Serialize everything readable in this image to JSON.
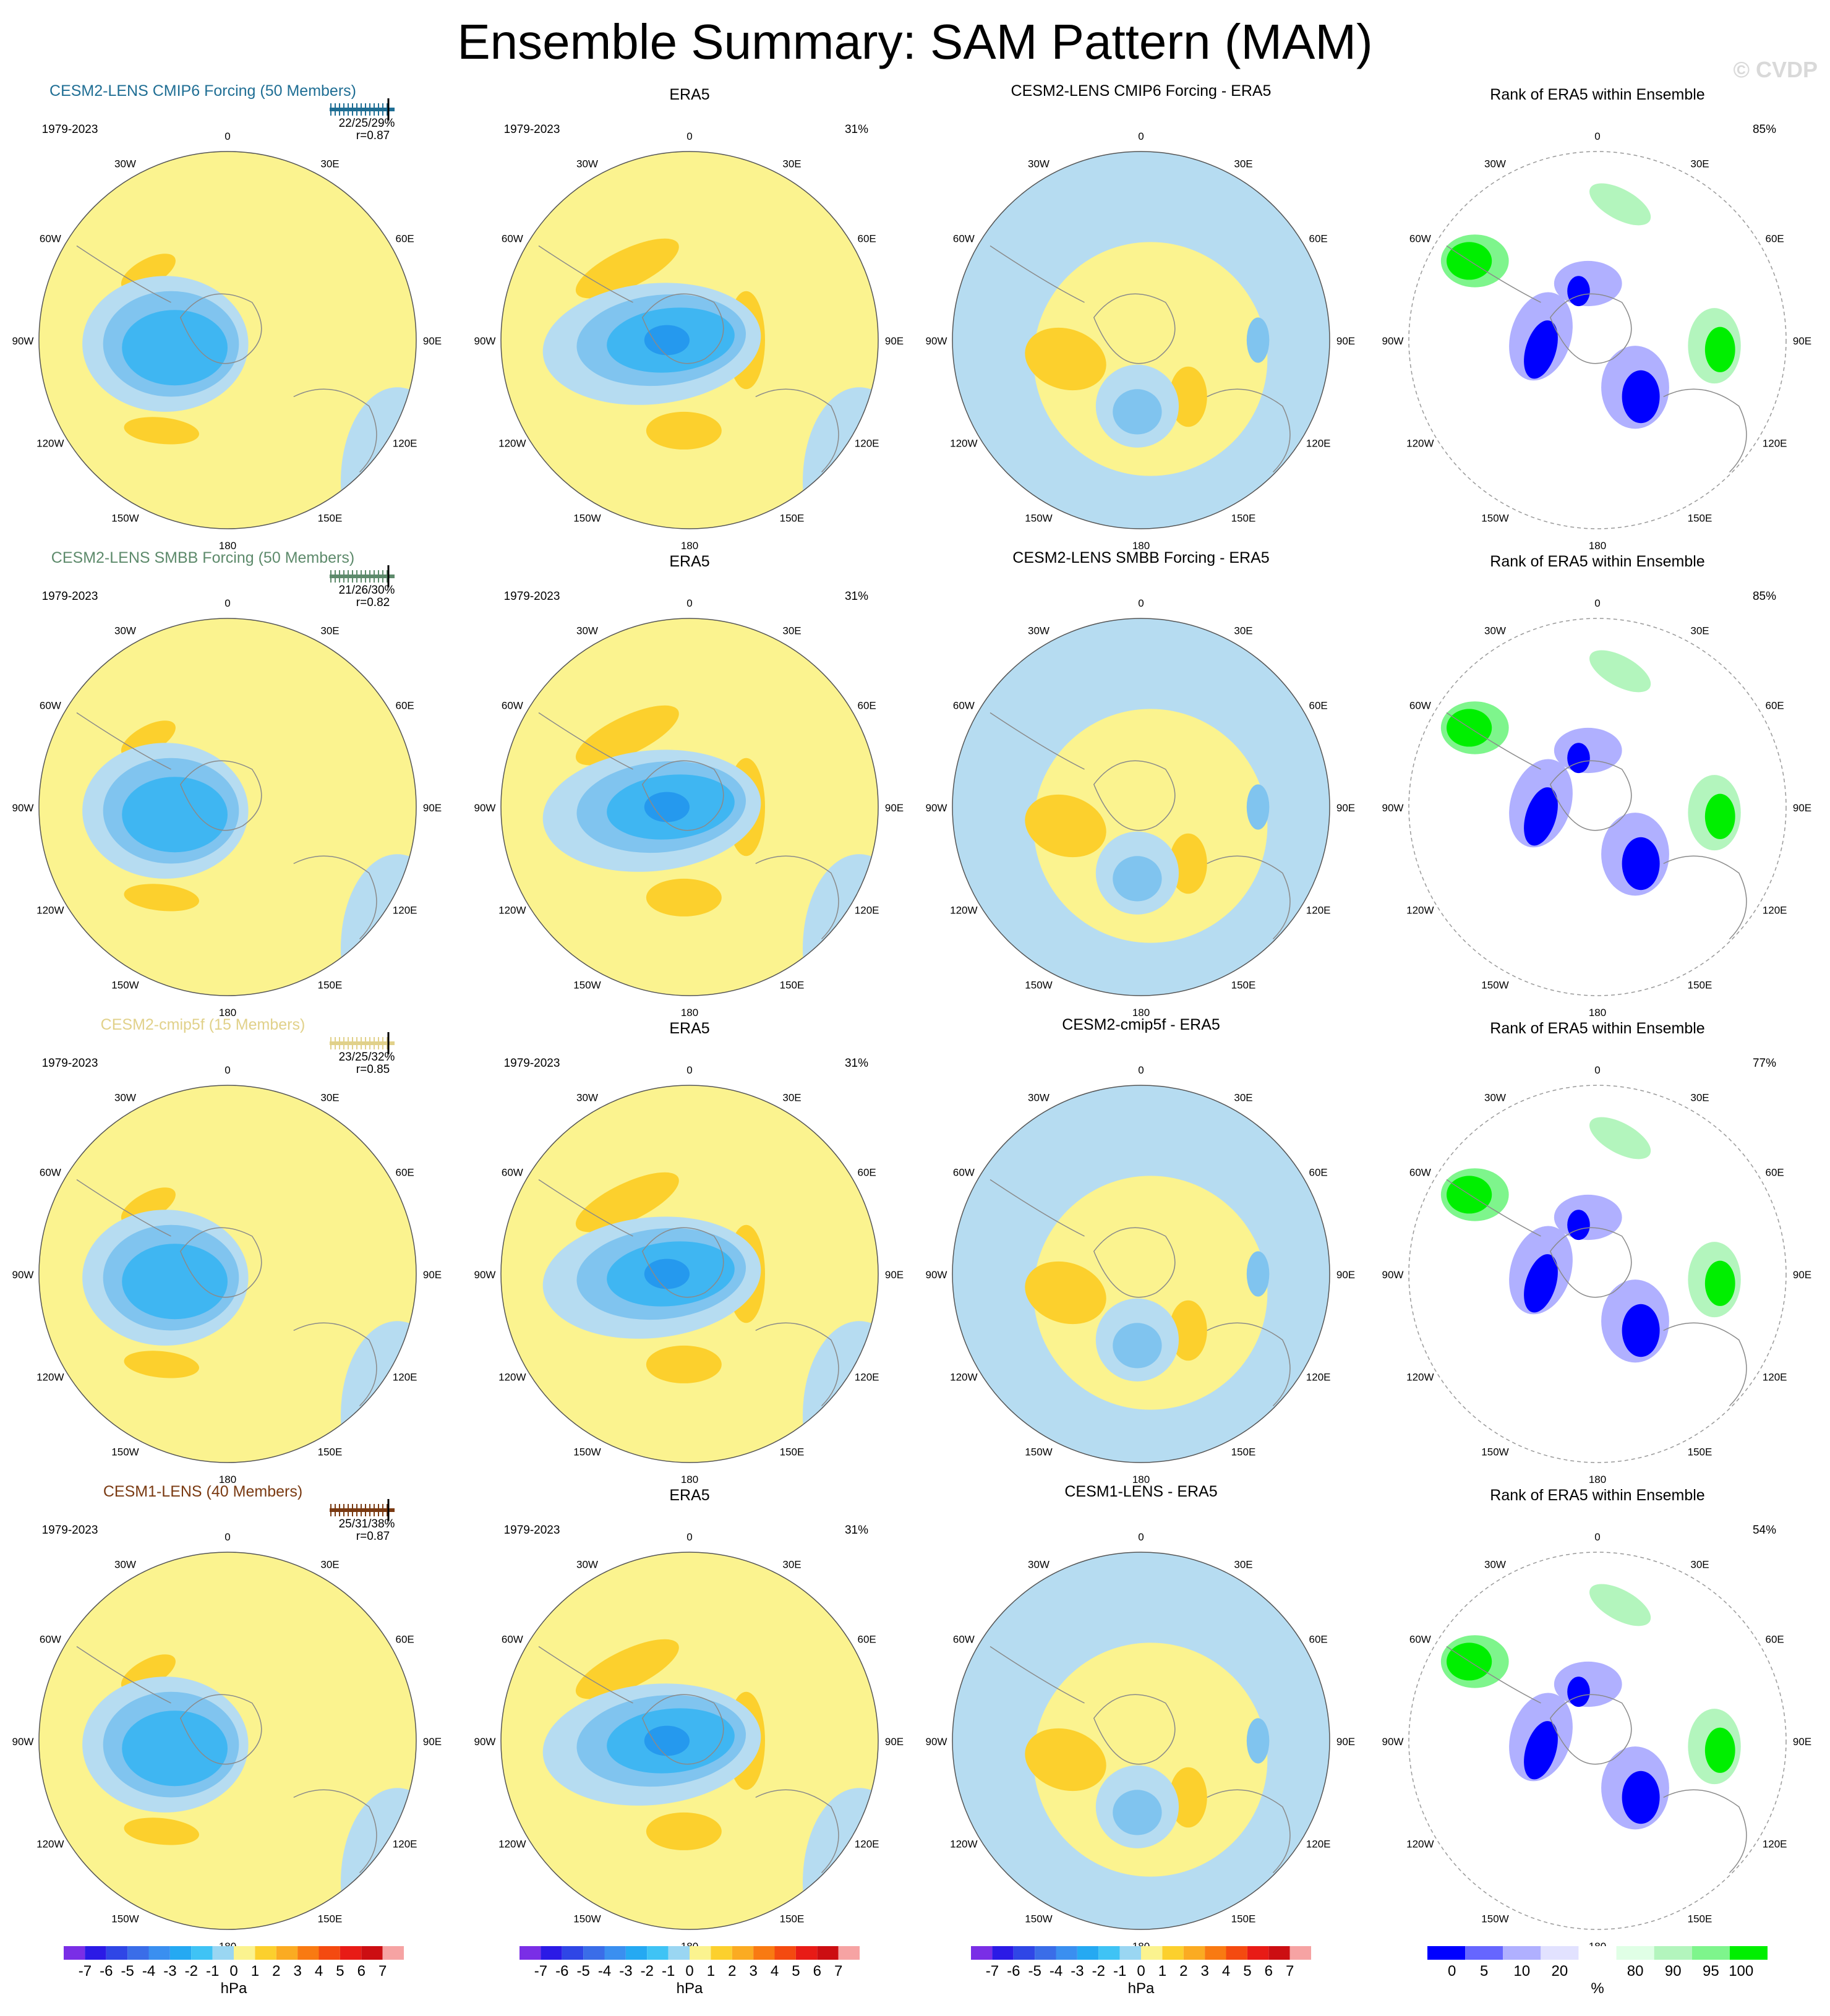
{
  "title": "Ensemble Summary: SAM Pattern (MAM)",
  "watermark": "© CVDP",
  "colors": {
    "pos_light": "#fbf38f",
    "pos_mid": "#fcd02d",
    "pos_strong": "#fbab22",
    "neg_1": "#b6dcf1",
    "neg_2": "#80c4ef",
    "neg_3": "#3fb6f2",
    "neg_4": "#2599ee",
    "rank_low1": "#0000ff",
    "rank_low2": "#6666ff",
    "rank_low3": "#b0b0ff",
    "rank_low4": "#e2e2ff",
    "rank_high1": "#e0ffe6",
    "rank_high2": "#b3f5bd",
    "rank_high3": "#7ef58c",
    "rank_high4": "#00ef00",
    "coast": "#8a8a8a",
    "row_title_colors": [
      "#1f6e94",
      "#5d8a6b",
      "#e1d18a",
      "#7a3a12"
    ]
  },
  "lon_labels": [
    "0",
    "30E",
    "60E",
    "90E",
    "120E",
    "150E",
    "180",
    "150W",
    "120W",
    "90W",
    "60W",
    "30W"
  ],
  "rows": [
    {
      "model_title": "CESM2-LENS CMIP6 Forcing (50 Members)",
      "years": "1979-2023",
      "stats": "22/25/29%",
      "corr": "r=0.87",
      "era_title": "ERA5",
      "era_years": "1979-2023",
      "era_pct": "31%",
      "diff_title": "CESM2-LENS CMIP6 Forcing - ERA5",
      "rank_title": "Rank of ERA5 within Ensemble",
      "rank_pct": "85%"
    },
    {
      "model_title": "CESM2-LENS SMBB Forcing (50 Members)",
      "years": "1979-2023",
      "stats": "21/26/30%",
      "corr": "r=0.82",
      "era_title": "ERA5",
      "era_years": "1979-2023",
      "era_pct": "31%",
      "diff_title": "CESM2-LENS SMBB Forcing - ERA5",
      "rank_title": "Rank of ERA5 within Ensemble",
      "rank_pct": "85%"
    },
    {
      "model_title": "CESM2-cmip5f (15 Members)",
      "years": "1979-2023",
      "stats": "23/25/32%",
      "corr": "r=0.85",
      "era_title": "ERA5",
      "era_years": "1979-2023",
      "era_pct": "31%",
      "diff_title": "CESM2-cmip5f - ERA5",
      "rank_title": "Rank of ERA5 within Ensemble",
      "rank_pct": "77%"
    },
    {
      "model_title": "CESM1-LENS (40 Members)",
      "years": "1979-2023",
      "stats": "25/31/38%",
      "corr": "r=0.87",
      "era_title": "ERA5",
      "era_years": "1979-2023",
      "era_pct": "31%",
      "diff_title": "CESM1-LENS - ERA5",
      "rank_title": "Rank of ERA5 within Ensemble",
      "rank_pct": "54%"
    }
  ],
  "colorbar_hpa": {
    "labels": [
      "-7",
      "-6",
      "-5",
      "-4",
      "-3",
      "-2",
      "-1",
      "0",
      "1",
      "2",
      "3",
      "4",
      "5",
      "6",
      "7"
    ],
    "colors": [
      "#7a2ee6",
      "#2b1ae6",
      "#2f46e6",
      "#3a6de8",
      "#3a8ff0",
      "#25a9f2",
      "#3fc3f5",
      "#9ad6f2",
      "#fbf38f",
      "#fcd02d",
      "#fbab22",
      "#f97a12",
      "#f44a10",
      "#e81b16",
      "#cc0e12",
      "#f6a3a3"
    ],
    "unit": "hPa"
  },
  "colorbar_rank": {
    "labels": [
      "0",
      "5",
      "10",
      "20",
      "80",
      "90",
      "95",
      "100"
    ],
    "colors": [
      "#0000ff",
      "#6666ff",
      "#b0b0ff",
      "#e2e2ff",
      "#ffffff",
      "#e0ffe6",
      "#b3f5bd",
      "#7ef58c",
      "#00ef00"
    ],
    "unit": "%"
  }
}
